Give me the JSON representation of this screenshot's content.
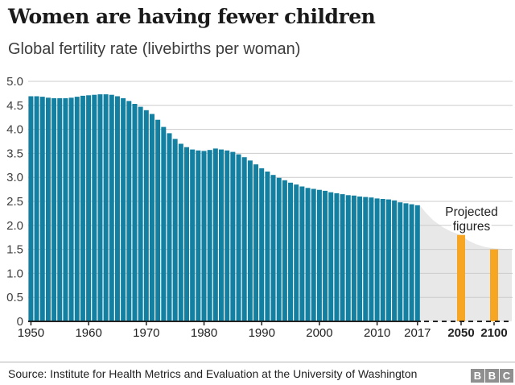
{
  "header": {
    "title": "Women are having fewer children",
    "subtitle": "Global fertility rate (livebirths per woman)"
  },
  "chart_data": {
    "type": "bar",
    "title": "Women are having fewer children",
    "ylabel": "Global fertility rate (livebirths per woman)",
    "ylim": [
      0,
      5
    ],
    "grid": true,
    "legend_position": "none",
    "start_year": 1950,
    "end_year": 2017,
    "values": [
      4.69,
      4.69,
      4.68,
      4.66,
      4.65,
      4.65,
      4.65,
      4.66,
      4.68,
      4.7,
      4.71,
      4.72,
      4.73,
      4.73,
      4.72,
      4.69,
      4.65,
      4.59,
      4.53,
      4.47,
      4.4,
      4.32,
      4.2,
      4.05,
      3.92,
      3.8,
      3.7,
      3.63,
      3.58,
      3.56,
      3.55,
      3.57,
      3.6,
      3.58,
      3.56,
      3.53,
      3.48,
      3.42,
      3.35,
      3.27,
      3.19,
      3.12,
      3.05,
      2.99,
      2.94,
      2.89,
      2.85,
      2.81,
      2.78,
      2.76,
      2.74,
      2.72,
      2.69,
      2.67,
      2.65,
      2.63,
      2.62,
      2.6,
      2.59,
      2.58,
      2.56,
      2.55,
      2.54,
      2.52,
      2.48,
      2.46,
      2.44,
      2.42
    ],
    "bar_color": "#1380a1",
    "gridline_color": "#cccccc",
    "axis_color": "#222222",
    "y_tick_color": "#404040",
    "y_ticks": [
      {
        "label": "5.0",
        "value": 5.0
      },
      {
        "label": "4.5",
        "value": 4.5
      },
      {
        "label": "4.0",
        "value": 4.0
      },
      {
        "label": "3.5",
        "value": 3.5
      },
      {
        "label": "3.0",
        "value": 3.0
      },
      {
        "label": "2.5",
        "value": 2.5
      },
      {
        "label": "2.0",
        "value": 2.0
      },
      {
        "label": "1.5",
        "value": 1.5
      },
      {
        "label": "1.0",
        "value": 1.0
      },
      {
        "label": "0.5",
        "value": 0.5
      },
      {
        "label": "0",
        "value": 0
      }
    ],
    "x_ticks": [
      {
        "label": "1950",
        "year": 1950,
        "bold": false
      },
      {
        "label": "1960",
        "year": 1960,
        "bold": false
      },
      {
        "label": "1970",
        "year": 1970,
        "bold": false
      },
      {
        "label": "1980",
        "year": 1980,
        "bold": false
      },
      {
        "label": "1990",
        "year": 1990,
        "bold": false
      },
      {
        "label": "2000",
        "year": 2000,
        "bold": false
      },
      {
        "label": "2010",
        "year": 2010,
        "bold": false
      },
      {
        "label": "2017",
        "year": 2017,
        "bold": false
      },
      {
        "label": "2050",
        "year": 2050,
        "bold": true
      },
      {
        "label": "2100",
        "year": 2100,
        "bold": true
      }
    ],
    "projection": {
      "label_lines": [
        "Projected",
        "figures"
      ],
      "bar_color": "#f6a623",
      "area_color": "#e8e8e8",
      "bars": [
        {
          "year": 2050,
          "value": 1.8
        },
        {
          "year": 2100,
          "value": 1.5
        }
      ],
      "area_points": [
        [
          2017,
          2.42
        ],
        [
          2022,
          2.26
        ],
        [
          2028,
          2.1
        ],
        [
          2035,
          1.97
        ],
        [
          2042,
          1.87
        ],
        [
          2050,
          1.8
        ],
        [
          2060,
          1.69
        ],
        [
          2072,
          1.61
        ],
        [
          2086,
          1.55
        ],
        [
          2100,
          1.52
        ]
      ]
    }
  },
  "footer": {
    "source": "Source: Institute for Health Metrics and Evaluation at the University of Washington",
    "logo_blocks": [
      "B",
      "B",
      "C"
    ]
  }
}
